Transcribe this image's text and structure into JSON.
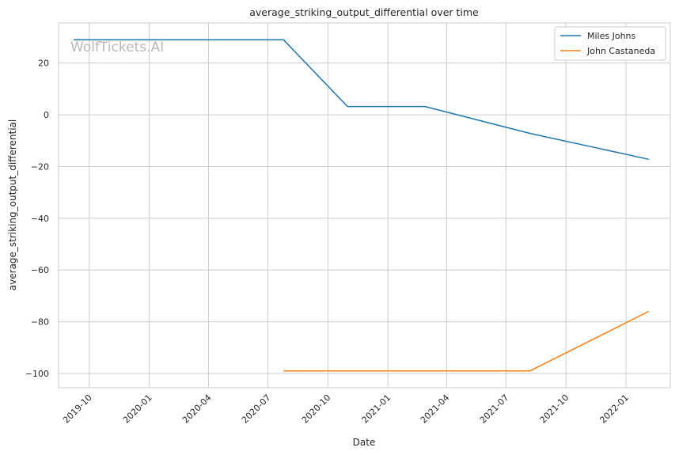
{
  "watermark": "WolfTickets.AI",
  "chart_data": {
    "type": "line",
    "title": "average_striking_output_differential over time",
    "xlabel": "Date",
    "ylabel": "average_striking_output_differential",
    "x_ticks": [
      "2019-10",
      "2020-01",
      "2020-04",
      "2020-07",
      "2020-10",
      "2021-01",
      "2021-04",
      "2021-07",
      "2021-10",
      "2022-01"
    ],
    "y_ticks": [
      20,
      0,
      -20,
      -40,
      -60,
      -80,
      -100
    ],
    "xlim": [
      "2019-08-15",
      "2022-03-10"
    ],
    "ylim": [
      -105.5,
      35.5
    ],
    "grid": true,
    "legend_position": "top-right",
    "series": [
      {
        "name": "Miles Johns",
        "color": "#1f77b4",
        "x": [
          "2019-09-07",
          "2020-07-25",
          "2020-10-31",
          "2021-02-27",
          "2021-08-07",
          "2022-02-05"
        ],
        "y": [
          29,
          29,
          3.2,
          3.2,
          -7.2,
          -17.2
        ]
      },
      {
        "name": "John Castaneda",
        "color": "#ff7f0e",
        "x": [
          "2020-07-25",
          "2021-08-07",
          "2022-02-05"
        ],
        "y": [
          -99,
          -99,
          -76
        ]
      }
    ]
  }
}
